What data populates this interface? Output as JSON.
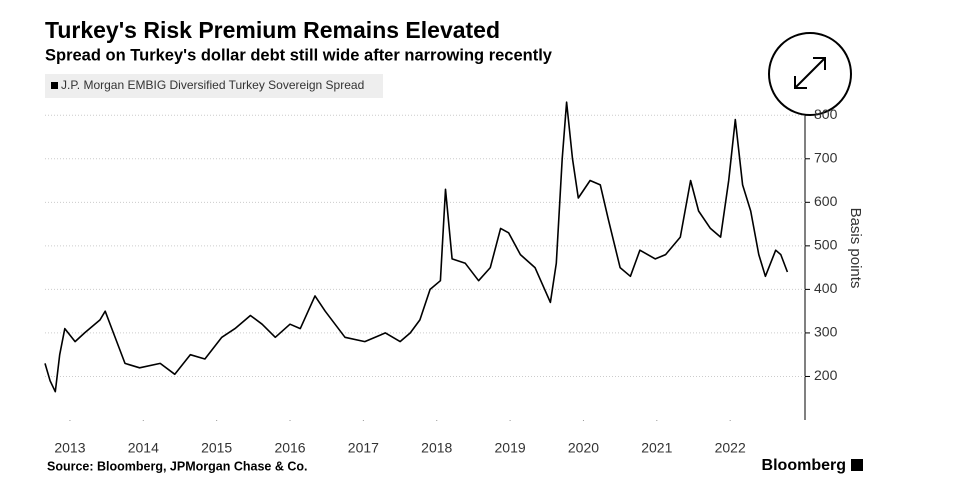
{
  "chart_data": {
    "type": "line",
    "title": "Turkey's Risk Premium Remains Elevated",
    "subtitle": "Spread on Turkey's dollar debt still wide after narrowing recently",
    "y_label": "Basis points",
    "source": "Source: Bloomberg, JPMorgan Chase & Co.",
    "credit": "Bloomberg",
    "x": [
      2013.16,
      2013.23,
      2013.3,
      2013.36,
      2013.43,
      2013.57,
      2013.7,
      2013.91,
      2013.98,
      2014.07,
      2014.25,
      2014.45,
      2014.73,
      2014.93,
      2015.14,
      2015.34,
      2015.57,
      2015.75,
      2015.96,
      2016.12,
      2016.3,
      2016.5,
      2016.64,
      2016.84,
      2016.98,
      2017.25,
      2017.52,
      2017.8,
      2018.0,
      2018.14,
      2018.27,
      2018.41,
      2018.55,
      2018.62,
      2018.71,
      2018.89,
      2019.07,
      2019.23,
      2019.37,
      2019.48,
      2019.64,
      2019.84,
      2020.05,
      2020.13,
      2020.21,
      2020.27,
      2020.35,
      2020.43,
      2020.59,
      2020.73,
      2020.84,
      2021.0,
      2021.14,
      2021.27,
      2021.48,
      2021.62,
      2021.82,
      2021.96,
      2022.07,
      2022.23,
      2022.37,
      2022.48,
      2022.57,
      2022.67,
      2022.78,
      2022.89,
      2022.98,
      2023.12,
      2023.19,
      2023.28
    ],
    "series": [
      {
        "name": "J.P. Morgan EMBIG Diversified Turkey Sovereign Spread",
        "color": "#000000",
        "values": [
          230,
          190,
          165,
          250,
          310,
          280,
          300,
          330,
          350,
          310,
          230,
          220,
          230,
          205,
          250,
          240,
          290,
          310,
          340,
          320,
          290,
          320,
          310,
          385,
          350,
          290,
          280,
          300,
          280,
          300,
          330,
          400,
          420,
          630,
          470,
          460,
          420,
          450,
          540,
          530,
          480,
          450,
          370,
          460,
          700,
          830,
          700,
          610,
          650,
          640,
          560,
          450,
          430,
          490,
          470,
          480,
          520,
          650,
          580,
          540,
          520,
          650,
          790,
          640,
          580,
          480,
          430,
          490,
          480,
          440
        ]
      }
    ],
    "xlim": [
      2013.16,
      2023.52
    ],
    "xticks": [
      {
        "value": 2013.5,
        "label": "2013"
      },
      {
        "value": 2014.5,
        "label": "2014"
      },
      {
        "value": 2015.5,
        "label": "2015"
      },
      {
        "value": 2016.5,
        "label": "2016"
      },
      {
        "value": 2017.5,
        "label": "2017"
      },
      {
        "value": 2018.5,
        "label": "2018"
      },
      {
        "value": 2019.5,
        "label": "2019"
      },
      {
        "value": 2020.5,
        "label": "2020"
      },
      {
        "value": 2021.5,
        "label": "2021"
      },
      {
        "value": 2022.5,
        "label": "2022"
      }
    ],
    "ylim": [
      100,
      835
    ],
    "yticks": [
      200,
      300,
      400,
      500,
      600,
      700,
      800
    ],
    "grid": true
  }
}
